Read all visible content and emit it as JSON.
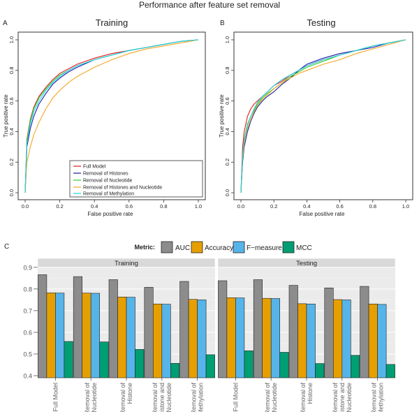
{
  "figure_title": "Performance after feature set removal",
  "panels": {
    "a": {
      "letter": "A",
      "title": "Training"
    },
    "b": {
      "letter": "B",
      "title": "Testing"
    },
    "c": {
      "letter": "C"
    }
  },
  "roc": {
    "xlabel": "False positive rate",
    "ylabel": "True positive rate",
    "ticks": [
      "0.0",
      "0.2",
      "0.4",
      "0.6",
      "0.8",
      "1.0"
    ]
  },
  "legend_colors": [
    "#e41a1c",
    "#1a1aa8",
    "#2ecc2e",
    "#f5a623",
    "#22d3e6"
  ],
  "bar_legend": {
    "title": "Metric:",
    "items": [
      "AUC",
      "Accuracy",
      "F−measure",
      "MCC"
    ],
    "colors": [
      "#8c8c8c",
      "#e69f00",
      "#56b4e9",
      "#009e73"
    ]
  },
  "chart_data": [
    {
      "type": "line",
      "title": "Training",
      "xlabel": "False positive rate",
      "ylabel": "True positive rate",
      "xlim": [
        0,
        1
      ],
      "ylim": [
        0,
        1
      ],
      "legend": "bottom-right",
      "series": [
        {
          "name": "Full Model",
          "x": [
            0,
            0.01,
            0.03,
            0.05,
            0.08,
            0.12,
            0.16,
            0.2,
            0.25,
            0.3,
            0.4,
            0.5,
            0.6,
            0.7,
            0.8,
            0.9,
            1.0
          ],
          "y": [
            0,
            0.35,
            0.48,
            0.56,
            0.63,
            0.69,
            0.74,
            0.78,
            0.81,
            0.84,
            0.88,
            0.91,
            0.93,
            0.95,
            0.97,
            0.99,
            1.0
          ]
        },
        {
          "name": "Removal of Histones",
          "x": [
            0,
            0.01,
            0.03,
            0.05,
            0.08,
            0.12,
            0.16,
            0.2,
            0.25,
            0.3,
            0.4,
            0.5,
            0.6,
            0.7,
            0.8,
            0.9,
            1.0
          ],
          "y": [
            0,
            0.3,
            0.42,
            0.5,
            0.58,
            0.65,
            0.71,
            0.75,
            0.79,
            0.82,
            0.87,
            0.9,
            0.93,
            0.95,
            0.97,
            0.99,
            1.0
          ]
        },
        {
          "name": "Removal of Nucleotide",
          "x": [
            0,
            0.01,
            0.03,
            0.05,
            0.08,
            0.12,
            0.16,
            0.2,
            0.25,
            0.3,
            0.4,
            0.5,
            0.6,
            0.7,
            0.8,
            0.9,
            1.0
          ],
          "y": [
            0,
            0.34,
            0.47,
            0.55,
            0.62,
            0.68,
            0.73,
            0.77,
            0.8,
            0.83,
            0.87,
            0.9,
            0.93,
            0.95,
            0.97,
            0.99,
            1.0
          ]
        },
        {
          "name": "Removal of Histones and Nucleotide",
          "x": [
            0,
            0.01,
            0.03,
            0.05,
            0.08,
            0.12,
            0.16,
            0.2,
            0.25,
            0.3,
            0.4,
            0.5,
            0.6,
            0.7,
            0.8,
            0.9,
            1.0
          ],
          "y": [
            0,
            0.2,
            0.3,
            0.38,
            0.46,
            0.55,
            0.62,
            0.67,
            0.72,
            0.76,
            0.82,
            0.87,
            0.91,
            0.94,
            0.96,
            0.98,
            1.0
          ]
        },
        {
          "name": "Removal of Methylation",
          "x": [
            0,
            0.01,
            0.03,
            0.05,
            0.08,
            0.12,
            0.16,
            0.2,
            0.25,
            0.3,
            0.4,
            0.5,
            0.6,
            0.7,
            0.8,
            0.9,
            1.0
          ],
          "y": [
            0,
            0.32,
            0.45,
            0.53,
            0.6,
            0.67,
            0.72,
            0.76,
            0.8,
            0.83,
            0.87,
            0.9,
            0.93,
            0.95,
            0.97,
            0.99,
            1.0
          ]
        }
      ]
    },
    {
      "type": "line",
      "title": "Testing",
      "xlabel": "False positive rate",
      "ylabel": "True positive rate",
      "xlim": [
        0,
        1
      ],
      "ylim": [
        0,
        1
      ],
      "series": [
        {
          "name": "Full Model",
          "x": [
            0,
            0.01,
            0.02,
            0.04,
            0.06,
            0.08,
            0.1,
            0.13,
            0.16,
            0.2,
            0.25,
            0.3,
            0.35,
            0.4,
            0.45,
            0.5,
            0.6,
            0.7,
            0.8,
            0.9,
            1.0
          ],
          "y": [
            0,
            0.3,
            0.4,
            0.5,
            0.55,
            0.58,
            0.6,
            0.63,
            0.66,
            0.7,
            0.73,
            0.77,
            0.8,
            0.83,
            0.85,
            0.87,
            0.9,
            0.93,
            0.96,
            0.98,
            1.0
          ]
        },
        {
          "name": "Removal of Histones",
          "x": [
            0,
            0.01,
            0.02,
            0.04,
            0.06,
            0.08,
            0.1,
            0.13,
            0.16,
            0.2,
            0.25,
            0.3,
            0.35,
            0.4,
            0.45,
            0.5,
            0.6,
            0.7,
            0.8,
            0.9,
            1.0
          ],
          "y": [
            0,
            0.2,
            0.3,
            0.4,
            0.47,
            0.52,
            0.56,
            0.6,
            0.63,
            0.66,
            0.71,
            0.75,
            0.8,
            0.84,
            0.86,
            0.88,
            0.91,
            0.93,
            0.95,
            0.98,
            1.0
          ]
        },
        {
          "name": "Removal of Nucleotide",
          "x": [
            0,
            0.01,
            0.02,
            0.04,
            0.06,
            0.08,
            0.1,
            0.13,
            0.16,
            0.2,
            0.25,
            0.3,
            0.35,
            0.4,
            0.45,
            0.5,
            0.6,
            0.7,
            0.8,
            0.9,
            1.0
          ],
          "y": [
            0,
            0.25,
            0.35,
            0.45,
            0.5,
            0.54,
            0.58,
            0.62,
            0.65,
            0.68,
            0.72,
            0.76,
            0.79,
            0.82,
            0.84,
            0.86,
            0.9,
            0.93,
            0.96,
            0.98,
            1.0
          ]
        },
        {
          "name": "Removal of Histones and Nucleotide",
          "x": [
            0,
            0.01,
            0.02,
            0.04,
            0.06,
            0.08,
            0.1,
            0.13,
            0.16,
            0.2,
            0.25,
            0.3,
            0.35,
            0.4,
            0.45,
            0.5,
            0.6,
            0.7,
            0.8,
            0.9,
            1.0
          ],
          "y": [
            0,
            0.22,
            0.32,
            0.42,
            0.48,
            0.53,
            0.57,
            0.61,
            0.64,
            0.68,
            0.72,
            0.75,
            0.78,
            0.8,
            0.82,
            0.84,
            0.87,
            0.91,
            0.94,
            0.97,
            1.0
          ]
        },
        {
          "name": "Removal of Methylation",
          "x": [
            0,
            0.01,
            0.02,
            0.04,
            0.06,
            0.08,
            0.1,
            0.13,
            0.16,
            0.2,
            0.25,
            0.3,
            0.35,
            0.4,
            0.45,
            0.5,
            0.6,
            0.7,
            0.8,
            0.9,
            1.0
          ],
          "y": [
            0,
            0.24,
            0.34,
            0.44,
            0.5,
            0.55,
            0.59,
            0.63,
            0.66,
            0.7,
            0.74,
            0.77,
            0.8,
            0.83,
            0.85,
            0.87,
            0.9,
            0.93,
            0.96,
            0.98,
            1.0
          ]
        }
      ]
    },
    {
      "type": "bar",
      "legend_title": "Metric:",
      "ylim": [
        0.4,
        0.9
      ],
      "yticks": [
        "0.4",
        "0.5",
        "0.6",
        "0.7",
        "0.8",
        "0.9"
      ],
      "metrics": [
        "AUC",
        "Accuracy",
        "F−measure",
        "MCC"
      ],
      "facets": [
        {
          "name": "Training",
          "categories": [
            "Full Model",
            "Removal of Nucleotide",
            "Removal of Histone",
            "Removal of Histone and Nucleotide",
            "Removal of Methylation"
          ],
          "category_lines": [
            [
              "Full Model"
            ],
            [
              "Removal of",
              "Nucleotide"
            ],
            [
              "Removal of",
              "Histone"
            ],
            [
              "Removal of",
              "Histone and",
              "Nucleotide"
            ],
            [
              "Removal of",
              "Methylation"
            ]
          ],
          "series": [
            {
              "name": "AUC",
              "values": [
                0.866,
                0.857,
                0.843,
                0.808,
                0.835
              ]
            },
            {
              "name": "Accuracy",
              "values": [
                0.782,
                0.781,
                0.763,
                0.731,
                0.752
              ]
            },
            {
              "name": "F−measure",
              "values": [
                0.781,
                0.78,
                0.762,
                0.73,
                0.75
              ]
            },
            {
              "name": "MCC",
              "values": [
                0.558,
                0.556,
                0.521,
                0.457,
                0.497
              ]
            }
          ]
        },
        {
          "name": "Testing",
          "categories": [
            "Full Model",
            "Removal of Nucleotide",
            "Removal of Histone",
            "Removal of Histone and Nucleotide",
            "Removal of Methylation"
          ],
          "category_lines": [
            [
              "Full Model"
            ],
            [
              "Removal of",
              "Nucleotide"
            ],
            [
              "Removal of",
              "Histone"
            ],
            [
              "Removal of",
              "Histone and",
              "Nucleotide"
            ],
            [
              "Removal of",
              "Methylation"
            ]
          ],
          "series": [
            {
              "name": "AUC",
              "values": [
                0.838,
                0.843,
                0.817,
                0.805,
                0.812
              ]
            },
            {
              "name": "Accuracy",
              "values": [
                0.76,
                0.757,
                0.732,
                0.751,
                0.731
              ]
            },
            {
              "name": "F−measure",
              "values": [
                0.759,
                0.756,
                0.731,
                0.75,
                0.729
              ]
            },
            {
              "name": "MCC",
              "values": [
                0.515,
                0.508,
                0.456,
                0.494,
                0.452
              ]
            }
          ]
        }
      ]
    }
  ]
}
